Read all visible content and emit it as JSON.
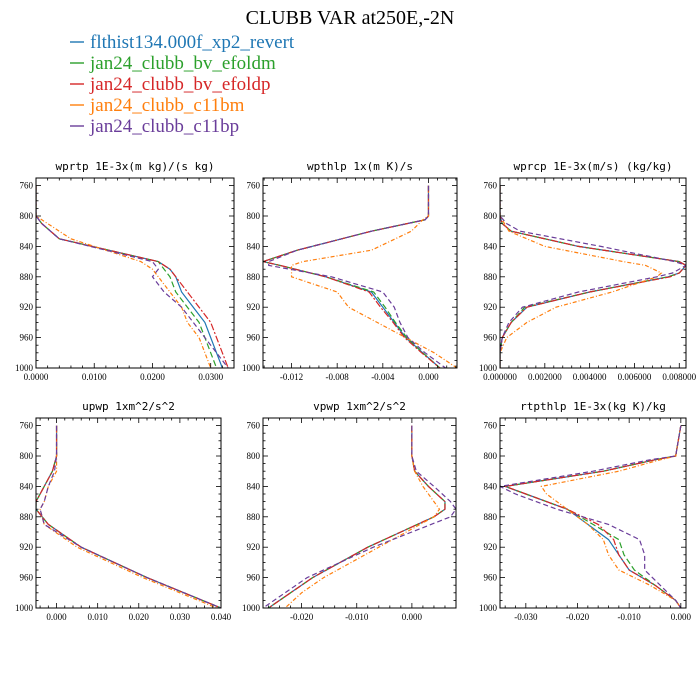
{
  "title": "CLUBB VAR at250E,-2N",
  "legend": [
    {
      "name": "flthist134.000f_xp2_revert",
      "color": "#1f77b4",
      "dash": ""
    },
    {
      "name": "jan24_clubb_bv_efoldm",
      "color": "#2ca02c",
      "dash": "6,3"
    },
    {
      "name": "jan24_clubb_bv_efoldp",
      "color": "#d62728",
      "dash": "7,2,2,2"
    },
    {
      "name": "jan24_clubb_c11bm",
      "color": "#ff7f0e",
      "dash": "4,2,1,2"
    },
    {
      "name": "jan24_clubb_c11bp",
      "color": "#6a3d9a",
      "dash": "5,3"
    }
  ],
  "chart_data": [
    {
      "type": "line",
      "title": "wprtp  1E-3x(m kg)/(s kg)",
      "xlim": [
        0.0,
        0.034
      ],
      "ylim": [
        1000,
        750
      ],
      "xticks": [
        0.0,
        0.01,
        0.02,
        0.03
      ],
      "xtick_labels": [
        "0.0000",
        "0.0100",
        "0.0200",
        "0.0300"
      ],
      "yticks": [
        760,
        800,
        840,
        880,
        920,
        960,
        1000
      ],
      "y": [
        760,
        800,
        810,
        830,
        860,
        870,
        880,
        900,
        920,
        940,
        960,
        980,
        1000
      ],
      "series": [
        {
          "values": [
            0.0,
            0.0,
            0.001,
            0.004,
            0.021,
            0.023,
            0.024,
            0.025,
            0.027,
            0.029,
            0.03,
            0.031,
            0.032
          ]
        },
        {
          "values": [
            0.0,
            0.0,
            0.001,
            0.004,
            0.021,
            0.022,
            0.023,
            0.024,
            0.026,
            0.028,
            0.029,
            0.03,
            0.031
          ]
        },
        {
          "values": [
            0.0,
            0.0,
            0.001,
            0.004,
            0.021,
            0.023,
            0.024,
            0.026,
            0.028,
            0.03,
            0.031,
            0.032,
            0.033
          ]
        },
        {
          "values": [
            0.0,
            0.0,
            0.002,
            0.006,
            0.018,
            0.02,
            0.021,
            0.023,
            0.025,
            0.026,
            0.028,
            0.029,
            0.03
          ]
        },
        {
          "values": [
            0.0,
            0.0,
            0.001,
            0.004,
            0.02,
            0.021,
            0.02,
            0.022,
            0.025,
            0.027,
            0.029,
            0.031,
            0.033
          ]
        }
      ]
    },
    {
      "type": "line",
      "title": "wpthlp  1x(m K)/s",
      "xlim": [
        -0.0145,
        0.0025
      ],
      "ylim": [
        1000,
        750
      ],
      "xticks": [
        -0.012,
        -0.008,
        -0.004,
        0.0
      ],
      "xtick_labels": [
        "-0.012",
        "-0.008",
        "-0.004",
        "0.000"
      ],
      "yticks": [
        760,
        800,
        840,
        880,
        920,
        960,
        1000
      ],
      "y": [
        760,
        800,
        805,
        820,
        845,
        860,
        865,
        880,
        900,
        920,
        940,
        960,
        980,
        1000
      ],
      "series": [
        {
          "values": [
            0.0,
            0.0,
            -0.0003,
            -0.005,
            -0.0115,
            -0.0145,
            -0.013,
            -0.009,
            -0.005,
            -0.004,
            -0.003,
            -0.002,
            -0.0005,
            0.001
          ]
        },
        {
          "values": [
            0.0,
            0.0,
            -0.0003,
            -0.005,
            -0.0115,
            -0.0145,
            -0.013,
            -0.009,
            -0.0048,
            -0.0038,
            -0.0029,
            -0.0019,
            -0.0005,
            0.001
          ]
        },
        {
          "values": [
            0.0,
            0.0,
            -0.0003,
            -0.005,
            -0.0115,
            -0.0145,
            -0.013,
            -0.009,
            -0.0052,
            -0.0042,
            -0.0031,
            -0.0021,
            -0.0006,
            0.001
          ]
        },
        {
          "values": [
            0.0,
            0.0,
            -0.0005,
            -0.0015,
            -0.005,
            -0.011,
            -0.012,
            -0.012,
            -0.008,
            -0.007,
            -0.0045,
            -0.002,
            0.0005,
            0.0025
          ]
        },
        {
          "values": [
            0.0,
            0.0,
            -0.0003,
            -0.005,
            -0.0115,
            -0.014,
            -0.014,
            -0.0085,
            -0.004,
            -0.003,
            -0.0025,
            -0.0018,
            -0.0003,
            0.0015
          ]
        }
      ]
    },
    {
      "type": "line",
      "title": "wprcp  1E-3x(m/s) (kg/kg)",
      "xlim": [
        0.0,
        0.0083
      ],
      "ylim": [
        1000,
        750
      ],
      "xticks": [
        0.0,
        0.002,
        0.004,
        0.006,
        0.008
      ],
      "xtick_labels": [
        "0.000000",
        "0.002000",
        "0.004000",
        "0.006000",
        "0.008000"
      ],
      "yticks": [
        760,
        800,
        840,
        880,
        920,
        960,
        1000
      ],
      "y": [
        760,
        800,
        810,
        820,
        840,
        860,
        865,
        875,
        880,
        900,
        920,
        940,
        960,
        980,
        1000
      ],
      "series": [
        {
          "values": [
            0.0,
            0.0,
            0.0001,
            0.0005,
            0.0035,
            0.008,
            0.0083,
            0.008,
            0.0075,
            0.004,
            0.0012,
            0.0005,
            0.0001,
            0.0,
            0.0
          ]
        },
        {
          "values": [
            0.0,
            0.0,
            0.0001,
            0.0005,
            0.0035,
            0.008,
            0.0083,
            0.008,
            0.0075,
            0.004,
            0.0011,
            0.0005,
            0.0001,
            0.0,
            0.0
          ]
        },
        {
          "values": [
            0.0,
            0.0,
            0.0001,
            0.0005,
            0.0035,
            0.008,
            0.0083,
            0.008,
            0.0076,
            0.004,
            0.0012,
            0.0005,
            0.0001,
            0.0,
            0.0
          ]
        },
        {
          "values": [
            0.0,
            0.0,
            0.0002,
            0.0004,
            0.002,
            0.0055,
            0.0065,
            0.0072,
            0.007,
            0.005,
            0.0025,
            0.0012,
            0.0003,
            0.0,
            0.0
          ]
        },
        {
          "values": [
            0.0,
            0.0,
            0.0003,
            0.0009,
            0.0045,
            0.0078,
            0.0083,
            0.0077,
            0.007,
            0.0035,
            0.001,
            0.0004,
            0.0001,
            0.0,
            0.0
          ]
        }
      ]
    },
    {
      "type": "line",
      "title": "upwp  1xm^2/s^2",
      "xlim": [
        -0.005,
        0.04
      ],
      "ylim": [
        1000,
        750
      ],
      "xticks": [
        0.0,
        0.01,
        0.02,
        0.03,
        0.04
      ],
      "xtick_labels": [
        "0.000",
        "0.010",
        "0.020",
        "0.030",
        "0.040"
      ],
      "yticks": [
        760,
        800,
        840,
        880,
        920,
        960,
        1000
      ],
      "y": [
        760,
        800,
        820,
        840,
        860,
        870,
        890,
        920,
        940,
        960,
        980,
        1000
      ],
      "series": [
        {
          "values": [
            0.0,
            0.0,
            -0.001,
            -0.003,
            -0.005,
            -0.005,
            -0.002,
            0.006,
            0.014,
            0.022,
            0.031,
            0.04
          ]
        },
        {
          "values": [
            0.0,
            0.0,
            -0.001,
            -0.003,
            -0.005,
            -0.005,
            -0.002,
            0.006,
            0.014,
            0.022,
            0.031,
            0.04
          ]
        },
        {
          "values": [
            0.0,
            0.0,
            -0.001,
            -0.003,
            -0.005,
            -0.005,
            -0.002,
            0.006,
            0.014,
            0.022,
            0.031,
            0.04
          ]
        },
        {
          "values": [
            0.0,
            0.0,
            0.0,
            -0.002,
            -0.003,
            -0.004,
            -0.003,
            0.005,
            0.013,
            0.021,
            0.03,
            0.039
          ]
        },
        {
          "values": [
            0.0,
            0.0,
            -0.0005,
            -0.002,
            -0.003,
            -0.004,
            -0.003,
            0.006,
            0.014,
            0.022,
            0.031,
            0.04
          ]
        }
      ]
    },
    {
      "type": "line",
      "title": "vpwp  1xm^2/s^2",
      "xlim": [
        -0.027,
        0.008
      ],
      "ylim": [
        1000,
        750
      ],
      "xticks": [
        -0.02,
        -0.01,
        0.0
      ],
      "xtick_labels": [
        "-0.020",
        "-0.010",
        "0.000"
      ],
      "yticks": [
        760,
        800,
        840,
        880,
        920,
        960,
        1000
      ],
      "y": [
        760,
        800,
        820,
        840,
        860,
        870,
        880,
        900,
        920,
        940,
        960,
        980,
        1000
      ],
      "series": [
        {
          "values": [
            0.0,
            0.0,
            0.0005,
            0.003,
            0.006,
            0.006,
            0.004,
            -0.002,
            -0.008,
            -0.013,
            -0.018,
            -0.022,
            -0.026
          ]
        },
        {
          "values": [
            0.0,
            0.0,
            0.0005,
            0.003,
            0.006,
            0.006,
            0.004,
            -0.002,
            -0.008,
            -0.013,
            -0.018,
            -0.022,
            -0.026
          ]
        },
        {
          "values": [
            0.0,
            0.0,
            0.0005,
            0.003,
            0.006,
            0.006,
            0.004,
            -0.002,
            -0.008,
            -0.013,
            -0.018,
            -0.022,
            -0.026
          ]
        },
        {
          "values": [
            0.0,
            0.0,
            0.0005,
            0.002,
            0.004,
            0.005,
            0.004,
            -0.001,
            -0.006,
            -0.011,
            -0.016,
            -0.02,
            -0.023
          ]
        },
        {
          "values": [
            0.0,
            0.0,
            0.0008,
            0.004,
            0.007,
            0.008,
            0.007,
            0.0,
            -0.007,
            -0.013,
            -0.019,
            -0.023,
            -0.027
          ]
        }
      ]
    },
    {
      "type": "line",
      "title": "rtpthlp  1E-3x(kg K)/kg",
      "xlim": [
        -0.035,
        0.001
      ],
      "ylim": [
        1000,
        750
      ],
      "xticks": [
        -0.03,
        -0.02,
        -0.01,
        0.0
      ],
      "xtick_labels": [
        "-0.030",
        "-0.020",
        "-0.010",
        "0.000"
      ],
      "yticks": [
        760,
        800,
        840,
        880,
        920,
        960,
        1000
      ],
      "y": [
        760,
        800,
        805,
        820,
        840,
        850,
        870,
        890,
        910,
        930,
        950,
        970,
        990,
        1000
      ],
      "series": [
        {
          "values": [
            0.0,
            -0.001,
            -0.005,
            -0.015,
            -0.034,
            -0.03,
            -0.022,
            -0.018,
            -0.014,
            -0.012,
            -0.01,
            -0.005,
            -0.001,
            0.0
          ]
        },
        {
          "values": [
            0.0,
            -0.001,
            -0.005,
            -0.015,
            -0.034,
            -0.03,
            -0.022,
            -0.017,
            -0.012,
            -0.011,
            -0.009,
            -0.005,
            -0.001,
            0.0
          ]
        },
        {
          "values": [
            0.0,
            -0.001,
            -0.005,
            -0.015,
            -0.034,
            -0.03,
            -0.022,
            -0.016,
            -0.013,
            -0.012,
            -0.01,
            -0.005,
            -0.001,
            0.0
          ]
        },
        {
          "values": [
            0.0,
            -0.001,
            -0.004,
            -0.012,
            -0.027,
            -0.026,
            -0.022,
            -0.018,
            -0.015,
            -0.014,
            -0.012,
            -0.006,
            -0.001,
            0.0
          ]
        },
        {
          "values": [
            0.0,
            -0.001,
            -0.006,
            -0.017,
            -0.035,
            -0.032,
            -0.024,
            -0.014,
            -0.008,
            -0.007,
            -0.007,
            -0.004,
            -0.001,
            0.0
          ]
        }
      ]
    }
  ]
}
